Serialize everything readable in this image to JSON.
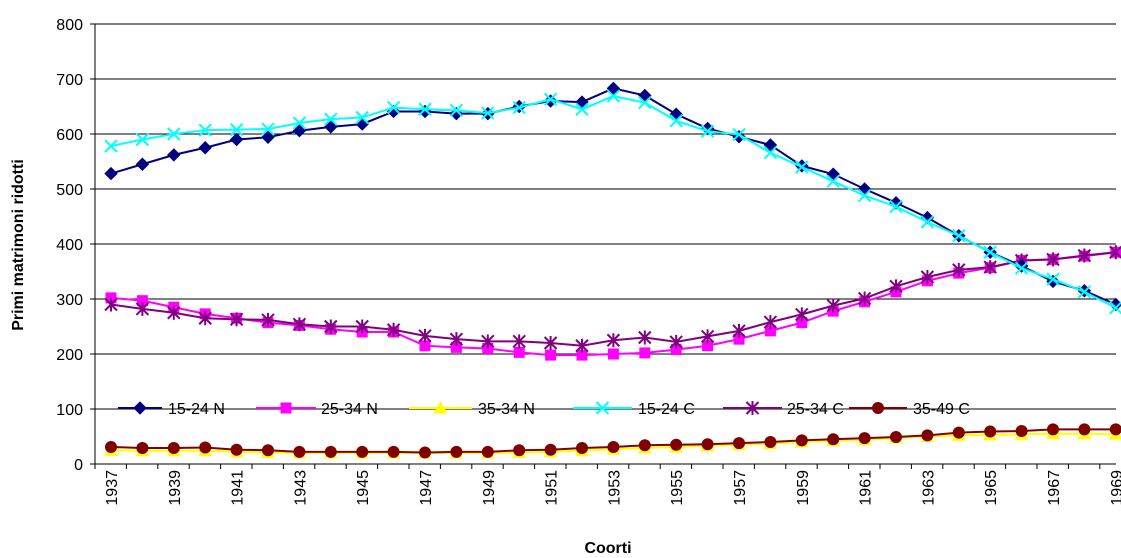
{
  "chart_data": {
    "type": "line",
    "title": "",
    "xlabel": "Coorti",
    "ylabel": "Primi matrimoni ridotti",
    "ylim": [
      0,
      800
    ],
    "yticks": [
      0,
      100,
      200,
      300,
      400,
      500,
      600,
      700,
      800
    ],
    "grid": "horizontal",
    "legend_position": "inside-bottom-left",
    "x": [
      1937,
      1938,
      1939,
      1940,
      1941,
      1942,
      1943,
      1944,
      1945,
      1946,
      1947,
      1948,
      1949,
      1950,
      1951,
      1952,
      1953,
      1954,
      1955,
      1956,
      1957,
      1958,
      1959,
      1960,
      1961,
      1962,
      1963,
      1964,
      1965,
      1966,
      1967,
      1968,
      1969
    ],
    "xticklabels": [
      "1937",
      "1939",
      "1941",
      "1943",
      "1945",
      "1947",
      "1949",
      "1951",
      "1953",
      "1955",
      "1957",
      "1959",
      "1961",
      "1963",
      "1965",
      "1967",
      "1969"
    ],
    "series": [
      {
        "name": "15-24 N",
        "color": "#000080",
        "marker": "diamond",
        "values": [
          528,
          545,
          562,
          575,
          590,
          594,
          606,
          613,
          618,
          641,
          641,
          637,
          637,
          650,
          660,
          658,
          683,
          670,
          636,
          610,
          595,
          580,
          542,
          527,
          500,
          475,
          448,
          415,
          385,
          360,
          332,
          315,
          290
        ]
      },
      {
        "name": "25-34 N",
        "color": "#ff00ff",
        "marker": "square",
        "values": [
          302,
          297,
          285,
          273,
          265,
          257,
          252,
          245,
          240,
          240,
          215,
          212,
          210,
          203,
          198,
          198,
          200,
          202,
          208,
          215,
          227,
          242,
          257,
          278,
          295,
          313,
          333,
          347,
          357,
          370,
          372,
          378,
          385
        ]
      },
      {
        "name": "35-34 N",
        "color": "#ffff00",
        "marker": "triangle",
        "values": [
          25,
          24,
          24,
          24,
          22,
          21,
          20,
          20,
          20,
          20,
          20,
          20,
          20,
          21,
          22,
          24,
          27,
          29,
          31,
          33,
          35,
          37,
          40,
          42,
          44,
          47,
          50,
          52,
          53,
          54,
          55,
          55,
          54
        ]
      },
      {
        "name": "15-24 C",
        "color": "#00ffff",
        "marker": "x",
        "values": [
          578,
          590,
          600,
          607,
          608,
          609,
          620,
          627,
          630,
          648,
          645,
          643,
          638,
          648,
          663,
          645,
          669,
          657,
          624,
          605,
          599,
          566,
          540,
          514,
          488,
          468,
          440,
          415,
          385,
          356,
          336,
          313,
          284
        ]
      },
      {
        "name": "25-34 C",
        "color": "#800080",
        "marker": "star",
        "values": [
          290,
          282,
          275,
          265,
          263,
          262,
          254,
          250,
          250,
          244,
          233,
          227,
          223,
          223,
          220,
          215,
          225,
          230,
          222,
          232,
          242,
          258,
          272,
          288,
          301,
          323,
          340,
          353,
          358,
          370,
          372,
          379,
          385
        ]
      },
      {
        "name": "35-49 C",
        "color": "#800000",
        "marker": "circle",
        "values": [
          31,
          29,
          29,
          30,
          26,
          25,
          22,
          22,
          22,
          22,
          21,
          22,
          22,
          25,
          26,
          29,
          31,
          34,
          35,
          36,
          38,
          40,
          43,
          45,
          47,
          49,
          52,
          57,
          59,
          60,
          63,
          63,
          63
        ]
      }
    ]
  }
}
